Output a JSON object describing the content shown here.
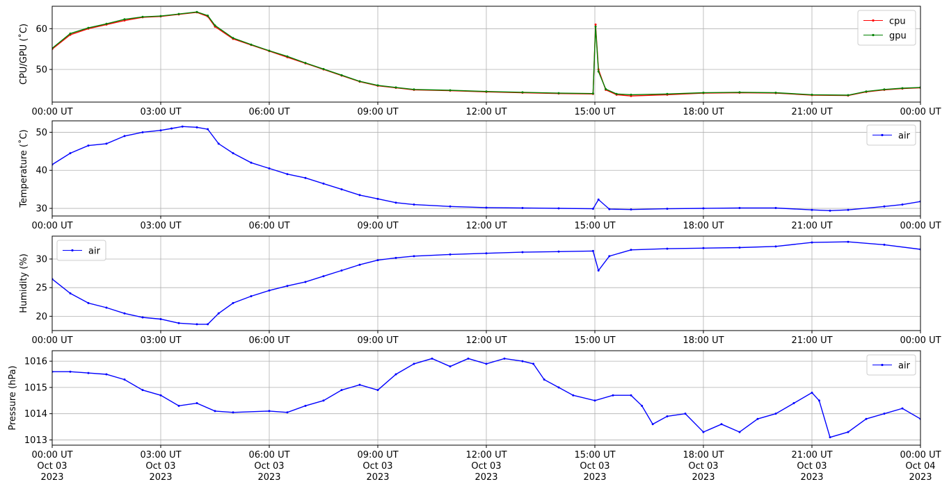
{
  "chart_data": [
    {
      "type": "line",
      "ylabel": "CPU/GPU (˚C)",
      "ylim": [
        42,
        65.5
      ],
      "yticks": [
        50,
        60
      ],
      "x_range_hours": [
        0,
        24
      ],
      "x_tick_labels": [
        "00:00 UT",
        "03:00 UT",
        "06:00 UT",
        "09:00 UT",
        "12:00 UT",
        "15:00 UT",
        "18:00 UT",
        "21:00 UT",
        "00:00 UT"
      ],
      "grid": true,
      "legend_position": "top-right",
      "series": [
        {
          "name": "cpu",
          "color": "#ff0000",
          "points": [
            [
              0,
              55
            ],
            [
              0.5,
              58.5
            ],
            [
              1,
              60
            ],
            [
              1.5,
              61
            ],
            [
              2,
              62
            ],
            [
              2.5,
              62.8
            ],
            [
              3,
              63
            ],
            [
              3.5,
              63.5
            ],
            [
              4,
              64
            ],
            [
              4.3,
              63
            ],
            [
              4.5,
              60.5
            ],
            [
              5,
              57.5
            ],
            [
              5.5,
              56
            ],
            [
              6,
              54.5
            ],
            [
              6.5,
              53
            ],
            [
              7,
              51.5
            ],
            [
              7.5,
              50
            ],
            [
              8,
              48.5
            ],
            [
              8.5,
              47
            ],
            [
              9,
              46
            ],
            [
              9.5,
              45.5
            ],
            [
              10,
              45
            ],
            [
              11,
              44.8
            ],
            [
              12,
              44.5
            ],
            [
              13,
              44.3
            ],
            [
              14,
              44.1
            ],
            [
              14.95,
              44
            ],
            [
              15.02,
              61
            ],
            [
              15.1,
              50
            ],
            [
              15.3,
              45
            ],
            [
              15.6,
              43.8
            ],
            [
              16,
              43.5
            ],
            [
              17,
              43.8
            ],
            [
              18,
              44.2
            ],
            [
              19,
              44.3
            ],
            [
              20,
              44.2
            ],
            [
              21,
              43.7
            ],
            [
              22,
              43.6
            ],
            [
              22.5,
              44.5
            ],
            [
              23,
              45
            ],
            [
              23.5,
              45.3
            ],
            [
              24,
              45.5
            ]
          ]
        },
        {
          "name": "gpu",
          "color": "#008000",
          "points": [
            [
              0,
              55.2
            ],
            [
              0.5,
              58.8
            ],
            [
              1,
              60.2
            ],
            [
              1.5,
              61.2
            ],
            [
              2,
              62.3
            ],
            [
              2.5,
              62.9
            ],
            [
              3,
              63.1
            ],
            [
              3.5,
              63.6
            ],
            [
              4,
              64.1
            ],
            [
              4.3,
              63.2
            ],
            [
              4.5,
              60.8
            ],
            [
              5,
              57.7
            ],
            [
              5.5,
              56.1
            ],
            [
              6,
              54.6
            ],
            [
              6.5,
              53.2
            ],
            [
              7,
              51.6
            ],
            [
              7.5,
              50.1
            ],
            [
              8,
              48.6
            ],
            [
              8.5,
              47.1
            ],
            [
              9,
              46.1
            ],
            [
              9.5,
              45.6
            ],
            [
              10,
              45.1
            ],
            [
              11,
              44.9
            ],
            [
              12,
              44.6
            ],
            [
              13,
              44.4
            ],
            [
              14,
              44.2
            ],
            [
              14.95,
              44.1
            ],
            [
              15.02,
              60.5
            ],
            [
              15.1,
              49.5
            ],
            [
              15.3,
              45.2
            ],
            [
              15.6,
              44
            ],
            [
              16,
              43.8
            ],
            [
              17,
              44
            ],
            [
              18,
              44.3
            ],
            [
              19,
              44.4
            ],
            [
              20,
              44.3
            ],
            [
              21,
              43.8
            ],
            [
              22,
              43.7
            ],
            [
              22.5,
              44.6
            ],
            [
              23,
              45.1
            ],
            [
              23.5,
              45.4
            ],
            [
              24,
              45.6
            ]
          ]
        }
      ]
    },
    {
      "type": "line",
      "ylabel": "Temperature (˚C)",
      "ylim": [
        28,
        53
      ],
      "yticks": [
        30,
        40,
        50
      ],
      "x_range_hours": [
        0,
        24
      ],
      "x_tick_labels": [
        "00:00 UT",
        "03:00 UT",
        "06:00 UT",
        "09:00 UT",
        "12:00 UT",
        "15:00 UT",
        "18:00 UT",
        "21:00 UT",
        "00:00 UT"
      ],
      "grid": true,
      "legend_position": "top-right",
      "series": [
        {
          "name": "air",
          "color": "#0000ff",
          "points": [
            [
              0,
              41.5
            ],
            [
              0.5,
              44.5
            ],
            [
              1,
              46.5
            ],
            [
              1.5,
              47
            ],
            [
              2,
              49
            ],
            [
              2.5,
              50
            ],
            [
              3,
              50.5
            ],
            [
              3.3,
              51
            ],
            [
              3.6,
              51.5
            ],
            [
              4,
              51.3
            ],
            [
              4.3,
              50.8
            ],
            [
              4.6,
              47
            ],
            [
              5,
              44.5
            ],
            [
              5.5,
              42
            ],
            [
              6,
              40.5
            ],
            [
              6.5,
              39
            ],
            [
              7,
              38
            ],
            [
              7.5,
              36.5
            ],
            [
              8,
              35
            ],
            [
              8.5,
              33.5
            ],
            [
              9,
              32.5
            ],
            [
              9.5,
              31.5
            ],
            [
              10,
              31
            ],
            [
              11,
              30.5
            ],
            [
              12,
              30.2
            ],
            [
              13,
              30.1
            ],
            [
              14,
              30
            ],
            [
              14.95,
              29.9
            ],
            [
              15.1,
              32.3
            ],
            [
              15.4,
              29.8
            ],
            [
              16,
              29.7
            ],
            [
              17,
              29.9
            ],
            [
              18,
              30
            ],
            [
              19,
              30.1
            ],
            [
              20,
              30.1
            ],
            [
              21,
              29.6
            ],
            [
              21.5,
              29.4
            ],
            [
              22,
              29.6
            ],
            [
              23,
              30.5
            ],
            [
              23.5,
              31
            ],
            [
              24,
              31.8
            ]
          ]
        }
      ]
    },
    {
      "type": "line",
      "ylabel": "Humidity (%)",
      "ylim": [
        17.5,
        34
      ],
      "yticks": [
        20,
        25,
        30
      ],
      "x_range_hours": [
        0,
        24
      ],
      "x_tick_labels": [
        "00:00 UT",
        "03:00 UT",
        "06:00 UT",
        "09:00 UT",
        "12:00 UT",
        "15:00 UT",
        "18:00 UT",
        "21:00 UT",
        "00:00 UT"
      ],
      "grid": true,
      "legend_position": "top-left",
      "series": [
        {
          "name": "air",
          "color": "#0000ff",
          "points": [
            [
              0,
              26.5
            ],
            [
              0.5,
              24
            ],
            [
              1,
              22.3
            ],
            [
              1.5,
              21.5
            ],
            [
              2,
              20.5
            ],
            [
              2.5,
              19.8
            ],
            [
              3,
              19.5
            ],
            [
              3.5,
              18.8
            ],
            [
              4,
              18.6
            ],
            [
              4.3,
              18.6
            ],
            [
              4.6,
              20.5
            ],
            [
              5,
              22.3
            ],
            [
              5.5,
              23.5
            ],
            [
              6,
              24.5
            ],
            [
              6.5,
              25.3
            ],
            [
              7,
              26
            ],
            [
              7.5,
              27
            ],
            [
              8,
              28
            ],
            [
              8.5,
              29
            ],
            [
              9,
              29.8
            ],
            [
              9.5,
              30.2
            ],
            [
              10,
              30.5
            ],
            [
              11,
              30.8
            ],
            [
              12,
              31
            ],
            [
              13,
              31.2
            ],
            [
              14,
              31.3
            ],
            [
              14.95,
              31.4
            ],
            [
              15.1,
              28
            ],
            [
              15.4,
              30.5
            ],
            [
              16,
              31.6
            ],
            [
              17,
              31.8
            ],
            [
              18,
              31.9
            ],
            [
              19,
              32
            ],
            [
              20,
              32.2
            ],
            [
              21,
              32.9
            ],
            [
              22,
              33
            ],
            [
              23,
              32.5
            ],
            [
              24,
              31.7
            ]
          ]
        }
      ]
    },
    {
      "type": "line",
      "ylabel": "Pressure (hPa)",
      "ylim": [
        1012.8,
        1016.4
      ],
      "yticks": [
        1013,
        1014,
        1015,
        1016
      ],
      "x_range_hours": [
        0,
        24
      ],
      "x_tick_labels": [
        "00:00 UT\nOct 03\n2023",
        "03:00 UT\nOct 03\n2023",
        "06:00 UT\nOct 03\n2023",
        "09:00 UT\nOct 03\n2023",
        "12:00 UT\nOct 03\n2023",
        "15:00 UT\nOct 03\n2023",
        "18:00 UT\nOct 03\n2023",
        "21:00 UT\nOct 03\n2023",
        "00:00 UT\nOct 04\n2023"
      ],
      "grid": true,
      "legend_position": "top-right",
      "series": [
        {
          "name": "air",
          "color": "#0000ff",
          "points": [
            [
              0,
              1015.6
            ],
            [
              0.5,
              1015.6
            ],
            [
              1,
              1015.55
            ],
            [
              1.5,
              1015.5
            ],
            [
              2,
              1015.3
            ],
            [
              2.5,
              1014.9
            ],
            [
              3,
              1014.7
            ],
            [
              3.5,
              1014.3
            ],
            [
              4,
              1014.4
            ],
            [
              4.5,
              1014.1
            ],
            [
              5,
              1014.05
            ],
            [
              6,
              1014.1
            ],
            [
              6.5,
              1014.05
            ],
            [
              7,
              1014.3
            ],
            [
              7.5,
              1014.5
            ],
            [
              8,
              1014.9
            ],
            [
              8.5,
              1015.1
            ],
            [
              9,
              1014.9
            ],
            [
              9.5,
              1015.5
            ],
            [
              10,
              1015.9
            ],
            [
              10.5,
              1016.1
            ],
            [
              11,
              1015.8
            ],
            [
              11.5,
              1016.1
            ],
            [
              12,
              1015.9
            ],
            [
              12.5,
              1016.1
            ],
            [
              13,
              1016
            ],
            [
              13.3,
              1015.9
            ],
            [
              13.6,
              1015.3
            ],
            [
              14,
              1015
            ],
            [
              14.4,
              1014.7
            ],
            [
              15,
              1014.5
            ],
            [
              15.5,
              1014.7
            ],
            [
              16,
              1014.7
            ],
            [
              16.3,
              1014.3
            ],
            [
              16.6,
              1013.6
            ],
            [
              17,
              1013.9
            ],
            [
              17.5,
              1014
            ],
            [
              18,
              1013.3
            ],
            [
              18.5,
              1013.6
            ],
            [
              19,
              1013.3
            ],
            [
              19.5,
              1013.8
            ],
            [
              20,
              1014
            ],
            [
              20.5,
              1014.4
            ],
            [
              21,
              1014.8
            ],
            [
              21.2,
              1014.5
            ],
            [
              21.5,
              1013.1
            ],
            [
              22,
              1013.3
            ],
            [
              22.5,
              1013.8
            ],
            [
              23,
              1014
            ],
            [
              23.5,
              1014.2
            ],
            [
              24,
              1013.8
            ]
          ]
        }
      ]
    }
  ]
}
